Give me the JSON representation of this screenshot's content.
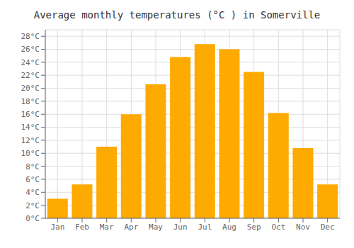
{
  "chart_data": {
    "type": "bar",
    "title": "Average monthly temperatures (°C ) in Somerville",
    "categories": [
      "Jan",
      "Feb",
      "Mar",
      "Apr",
      "May",
      "Jun",
      "Jul",
      "Aug",
      "Sep",
      "Oct",
      "Nov",
      "Dec"
    ],
    "values": [
      3.0,
      5.2,
      11.0,
      16.0,
      20.6,
      24.8,
      26.8,
      26.0,
      22.5,
      16.2,
      10.8,
      5.2
    ],
    "color": "#FFAA00",
    "ylim": [
      0,
      29
    ],
    "yticks": [
      {
        "value": 0,
        "label": "0°C"
      },
      {
        "value": 2,
        "label": "2°C"
      },
      {
        "value": 4,
        "label": "4°C"
      },
      {
        "value": 6,
        "label": "6°C"
      },
      {
        "value": 8,
        "label": "8°C"
      },
      {
        "value": 10,
        "label": "10°C"
      },
      {
        "value": 12,
        "label": "12°C"
      },
      {
        "value": 14,
        "label": "14°C"
      },
      {
        "value": 16,
        "label": "16°C"
      },
      {
        "value": 18,
        "label": "18°C"
      },
      {
        "value": 20,
        "label": "20°C"
      },
      {
        "value": 22,
        "label": "22°C"
      },
      {
        "value": 24,
        "label": "24°C"
      },
      {
        "value": 26,
        "label": "26°C"
      },
      {
        "value": 28,
        "label": "28°C"
      }
    ],
    "grid": true
  }
}
